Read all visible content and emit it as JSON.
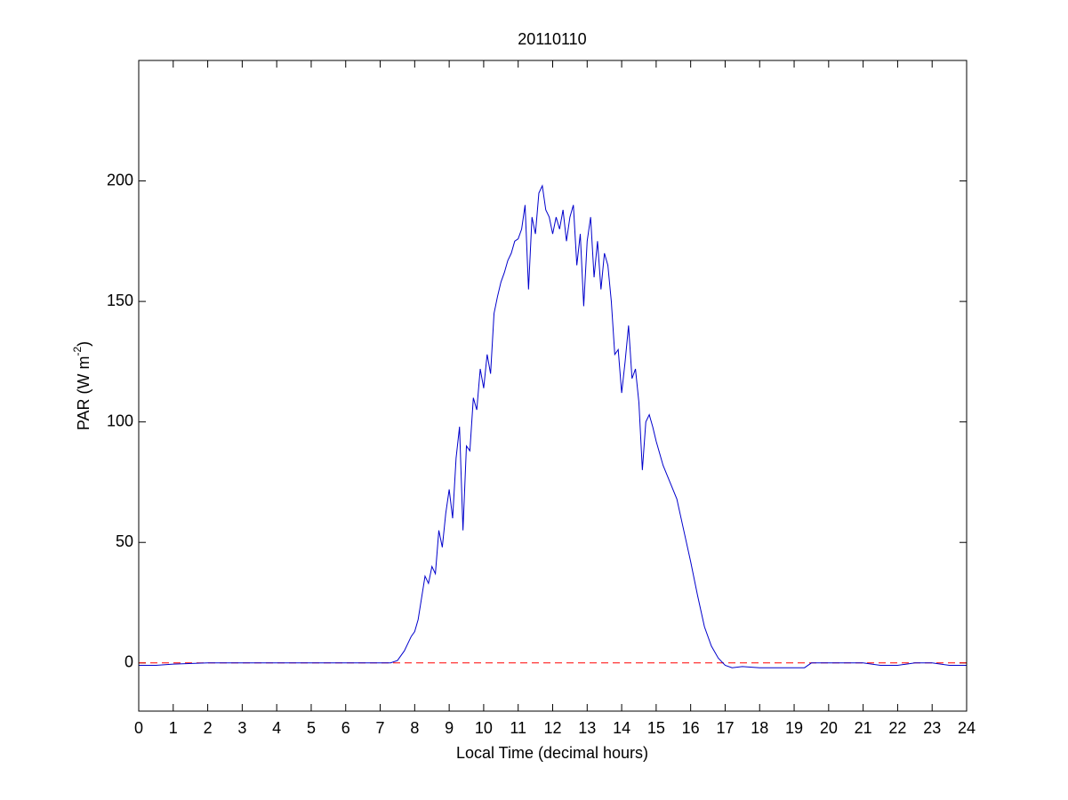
{
  "chart_data": {
    "type": "line",
    "title": "20110110",
    "xlabel": "Local Time (decimal hours)",
    "ylabel": {
      "text": "PAR (W m",
      "superscript": "-2",
      "suffix": ")"
    },
    "xlim": [
      0,
      24
    ],
    "xticks": [
      0,
      1,
      2,
      3,
      4,
      5,
      6,
      7,
      8,
      9,
      10,
      11,
      12,
      13,
      14,
      15,
      16,
      17,
      18,
      19,
      20,
      21,
      22,
      23,
      24
    ],
    "ylim": [
      -20,
      250
    ],
    "yticks": [
      0,
      50,
      100,
      150,
      200
    ],
    "hlines": [
      {
        "value": 0,
        "color": "#ff0000",
        "dashed": true
      }
    ],
    "x": [
      0,
      0.5,
      1,
      2,
      3,
      4,
      5,
      6,
      7,
      7.3,
      7.5,
      7.7,
      7.9,
      8.0,
      8.1,
      8.2,
      8.3,
      8.4,
      8.5,
      8.6,
      8.7,
      8.8,
      8.9,
      9.0,
      9.1,
      9.2,
      9.3,
      9.4,
      9.5,
      9.6,
      9.7,
      9.8,
      9.9,
      10.0,
      10.1,
      10.2,
      10.3,
      10.4,
      10.5,
      10.6,
      10.7,
      10.8,
      10.9,
      11.0,
      11.1,
      11.2,
      11.3,
      11.4,
      11.5,
      11.6,
      11.7,
      11.8,
      11.9,
      12.0,
      12.1,
      12.2,
      12.3,
      12.4,
      12.5,
      12.6,
      12.7,
      12.8,
      12.9,
      13.0,
      13.1,
      13.2,
      13.3,
      13.4,
      13.5,
      13.6,
      13.7,
      13.8,
      13.9,
      14.0,
      14.1,
      14.2,
      14.3,
      14.4,
      14.5,
      14.6,
      14.7,
      14.8,
      14.9,
      15.0,
      15.2,
      15.4,
      15.6,
      15.8,
      16.0,
      16.2,
      16.4,
      16.6,
      16.8,
      17.0,
      17.2,
      17.5,
      18,
      19,
      19.3,
      19.5,
      20,
      21,
      21.5,
      22,
      22.5,
      23,
      23.5,
      24
    ],
    "series": [
      {
        "color": "#0000cc",
        "values": [
          -1,
          -1,
          -0.5,
          0,
          0,
          0,
          0,
          0,
          0,
          0,
          1,
          5,
          11,
          13,
          18,
          27,
          36,
          33,
          40,
          37,
          55,
          48,
          62,
          72,
          60,
          85,
          98,
          55,
          90,
          88,
          110,
          105,
          122,
          114,
          128,
          120,
          145,
          152,
          158,
          162,
          167,
          170,
          175,
          176,
          180,
          190,
          155,
          185,
          178,
          195,
          198,
          188,
          185,
          178,
          185,
          180,
          188,
          175,
          185,
          190,
          165,
          178,
          148,
          175,
          185,
          160,
          175,
          155,
          170,
          165,
          150,
          128,
          130,
          112,
          125,
          140,
          118,
          122,
          108,
          80,
          100,
          103,
          98,
          92,
          82,
          75,
          68,
          55,
          42,
          28,
          15,
          7,
          2,
          -1,
          -2,
          -1.5,
          -2,
          -2,
          -2,
          0,
          0,
          0,
          -1,
          -1,
          0,
          0,
          -1,
          -1
        ]
      }
    ]
  }
}
